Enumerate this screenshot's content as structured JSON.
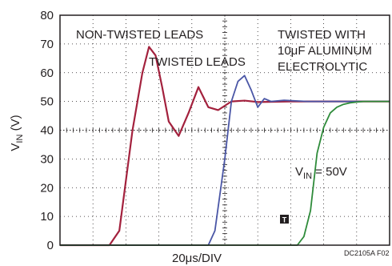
{
  "chart_data": {
    "type": "line",
    "ylabel_main": "V",
    "ylabel_sub": "IN",
    "ylabel_tail": " (V)",
    "xlabel": "20μs/DIV",
    "ylim": [
      0,
      80
    ],
    "yticks": [
      "0",
      "10",
      "20",
      "30",
      "40",
      "50",
      "60",
      "70",
      "80"
    ],
    "x_divisions": 10,
    "grid": true,
    "annotations": {
      "non_twisted": "NON-TWISTED LEADS",
      "twisted": "TWISTED LEADS",
      "aluminum_line1": "TWISTED WITH",
      "aluminum_line2": "10μF ALUMINUM",
      "aluminum_line3": "ELECTROLYTIC",
      "vin_main": "V",
      "vin_sub": "IN",
      "vin_tail": " = 50V",
      "trigger_marker": "T",
      "figure_id": "DC2105A F02"
    },
    "series": [
      {
        "name": "NON-TWISTED LEADS",
        "color": "#a3213d",
        "x": [
          0,
          15,
          18,
          22,
          25,
          27,
          29,
          31,
          33,
          36,
          39,
          42,
          45,
          48,
          52,
          56,
          60,
          70,
          80,
          100
        ],
        "y": [
          0,
          0,
          5,
          40,
          60,
          69,
          66,
          55,
          43,
          38,
          46,
          55,
          48,
          47,
          50,
          50.3,
          49.8,
          50,
          50,
          50
        ]
      },
      {
        "name": "TWISTED LEADS",
        "color": "#4a56a6",
        "x": [
          0,
          45,
          47,
          50,
          52,
          54,
          56,
          58,
          60,
          62,
          64,
          68,
          75,
          90,
          100
        ],
        "y": [
          0,
          0,
          5,
          30,
          50,
          57,
          59,
          54,
          48,
          51,
          50,
          50.4,
          50,
          50,
          50
        ]
      },
      {
        "name": "TWISTED WITH 10μF ALUMINUM ELECTROLYTIC",
        "color": "#2e8b3a",
        "x": [
          0,
          72,
          74,
          76,
          77,
          78,
          80,
          82,
          84,
          86,
          88,
          90,
          92,
          100
        ],
        "y": [
          0,
          0,
          3,
          12,
          22,
          32,
          41,
          46,
          48,
          49,
          49.5,
          49.8,
          50,
          50
        ]
      }
    ]
  }
}
